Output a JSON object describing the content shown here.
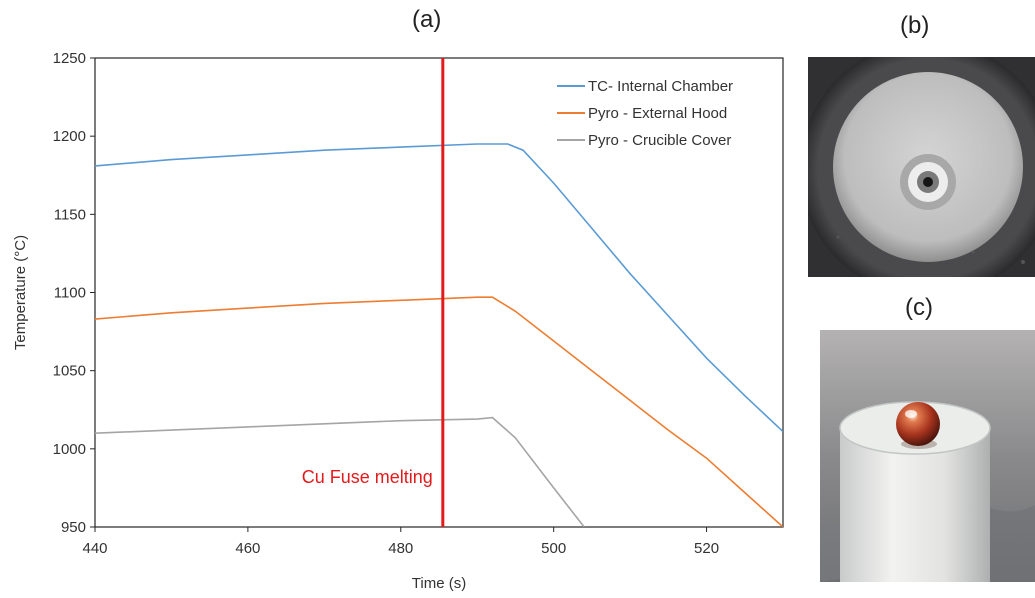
{
  "panels": {
    "a": "(a)",
    "b": "(b)",
    "c": "(c)"
  },
  "chart_data": {
    "type": "line",
    "title": "(a)",
    "xlabel": "Time (s)",
    "ylabel": "Temperature (°C)",
    "xlim": [
      440,
      530
    ],
    "ylim": [
      950,
      1250
    ],
    "xticks": [
      440,
      460,
      480,
      500,
      520
    ],
    "yticks": [
      950,
      1000,
      1050,
      1100,
      1150,
      1200,
      1250
    ],
    "grid": false,
    "legend": "top-right",
    "series": [
      {
        "name": "TC- Internal Chamber",
        "color": "#5b9bd5",
        "x": [
          440,
          450,
          460,
          470,
          480,
          490,
          494,
          496,
          500,
          505,
          510,
          515,
          520,
          525,
          530
        ],
        "y": [
          1181,
          1185,
          1188,
          1191,
          1193,
          1195,
          1195,
          1191,
          1170,
          1141,
          1112,
          1085,
          1058,
          1034,
          1011
        ]
      },
      {
        "name": "Pyro - External Hood",
        "color": "#ed7d31",
        "x": [
          440,
          450,
          460,
          470,
          480,
          490,
          492,
          495,
          500,
          505,
          510,
          515,
          520,
          525,
          530
        ],
        "y": [
          1083,
          1087,
          1090,
          1093,
          1095,
          1097,
          1097,
          1088,
          1069,
          1050,
          1031,
          1012,
          994,
          972,
          950
        ]
      },
      {
        "name": "Pyro - Crucible Cover",
        "color": "#a5a5a5",
        "x": [
          440,
          450,
          460,
          470,
          480,
          490,
          492,
          495,
          500,
          504
        ],
        "y": [
          1010,
          1012,
          1014,
          1016,
          1018,
          1019,
          1020,
          1007,
          975,
          950
        ]
      }
    ],
    "annotations": [
      {
        "text": "Cu Fuse melting",
        "x": 485.5,
        "color": "#e31a1c"
      }
    ]
  },
  "photos": {
    "b": {
      "desc_icon": "crucible-top-view-photo"
    },
    "c": {
      "desc_icon": "copper-sphere-on-crucible-photo"
    }
  }
}
